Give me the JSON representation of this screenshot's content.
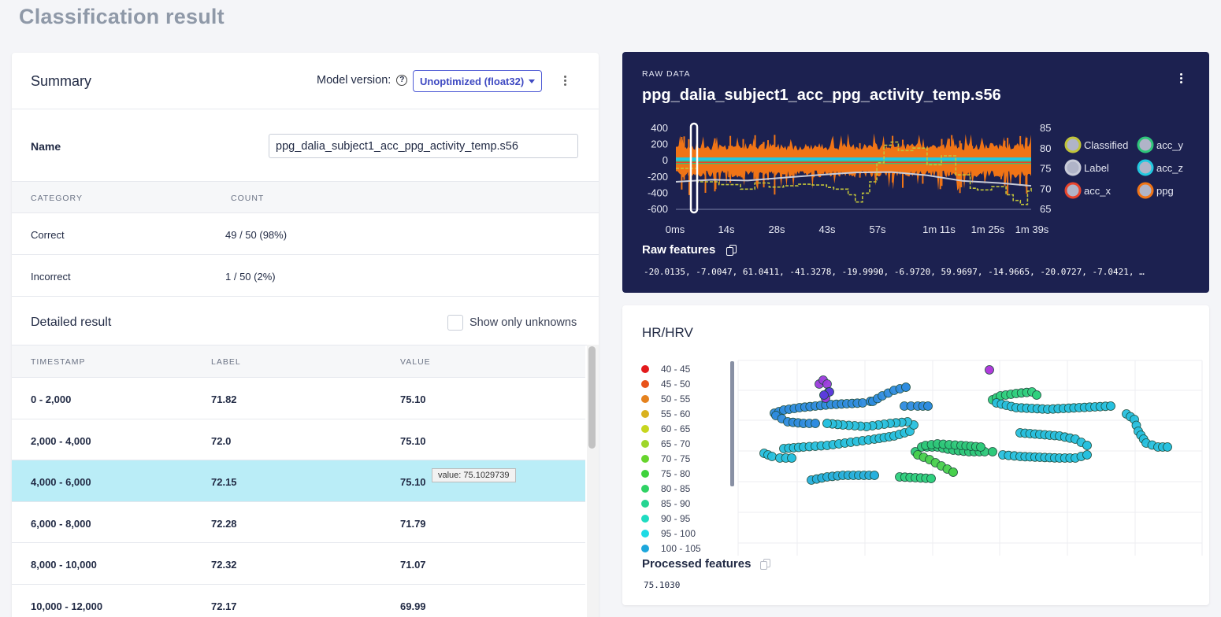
{
  "page_title": "Classification result",
  "summary": {
    "title": "Summary",
    "model_version_label": "Model version:",
    "model_version_value": "Unoptimized (float32)",
    "name_label": "Name",
    "name_value": "ppg_dalia_subject1_acc_ppg_activity_temp.s56",
    "columns": [
      "CATEGORY",
      "COUNT"
    ],
    "rows": [
      {
        "category": "Correct",
        "count": "49 / 50 (98%)"
      },
      {
        "category": "Incorrect",
        "count": "1 / 50 (2%)"
      }
    ]
  },
  "detailed": {
    "title": "Detailed result",
    "show_unknowns_label": "Show only unknowns",
    "show_unknowns_checked": false,
    "columns": [
      "TIMESTAMP",
      "LABEL",
      "VALUE"
    ],
    "rows": [
      {
        "timestamp": "0 - 2,000",
        "label": "71.82",
        "value": "75.10"
      },
      {
        "timestamp": "2,000 - 4,000",
        "label": "72.0",
        "value": "75.10"
      },
      {
        "timestamp": "4,000 - 6,000",
        "label": "72.15",
        "value": "75.10",
        "selected": true
      },
      {
        "timestamp": "6,000 - 8,000",
        "label": "72.28",
        "value": "71.79"
      },
      {
        "timestamp": "8,000 - 10,000",
        "label": "72.32",
        "value": "71.07"
      },
      {
        "timestamp": "10,000 - 12,000",
        "label": "72.17",
        "value": "69.99"
      }
    ],
    "tooltip": "value: 75.1029739"
  },
  "raw": {
    "eyebrow": "RAW DATA",
    "title": "ppg_dalia_subject1_acc_ppg_activity_temp.s56",
    "features_label": "Raw features",
    "features_value": "-20.0135, -7.0047, 61.0411, -41.3278, -19.9990, -6.9720, 59.9697, -14.9665, -20.0727, -7.0421, …"
  },
  "hr": {
    "title": "HR/HRV",
    "processed_label": "Processed features",
    "processed_value": "75.1030"
  },
  "chart_data": [
    {
      "type": "line",
      "title": "",
      "x_ticks": [
        "0ms",
        "14s",
        "28s",
        "43s",
        "57s",
        "1m 11s",
        "1m 25s",
        "1m 39s"
      ],
      "y_left_ticks": [
        400,
        200,
        0,
        -200,
        -400,
        -600
      ],
      "y_right_ticks": [
        85,
        80,
        75,
        70,
        65
      ],
      "ylim_left": [
        -600,
        400
      ],
      "ylim_right": [
        65,
        85
      ],
      "legend": [
        {
          "name": "Classified",
          "color": "#c1c43a"
        },
        {
          "name": "acc_y",
          "color": "#2fc57a"
        },
        {
          "name": "Label",
          "color": "#c8cbd8"
        },
        {
          "name": "acc_z",
          "color": "#22c8e0"
        },
        {
          "name": "acc_x",
          "color": "#e8432b"
        },
        {
          "name": "ppg",
          "color": "#f07416"
        }
      ],
      "series": [
        {
          "name": "Label",
          "x_s": [
            0,
            10,
            20,
            30,
            40,
            50,
            60,
            70,
            80,
            90,
            99
          ],
          "values": [
            71.8,
            72.3,
            72.1,
            72.8,
            73.5,
            74.1,
            74.2,
            73.4,
            72.0,
            71.5,
            70.8
          ]
        },
        {
          "name": "Classified",
          "x_s": [
            0,
            4,
            6,
            12,
            18,
            22,
            26,
            30,
            34,
            38,
            42,
            44,
            48,
            50,
            52,
            54,
            56,
            58,
            60,
            62,
            66,
            70,
            74,
            78,
            82,
            84,
            88,
            92,
            94,
            96,
            98,
            99
          ],
          "values": [
            75.1,
            75.1,
            71.8,
            71.1,
            70.0,
            71.5,
            70.5,
            70.8,
            71.2,
            71.0,
            70.4,
            70.0,
            68.6,
            66.8,
            69.0,
            71.8,
            76.5,
            80.8,
            81.6,
            79.5,
            80.1,
            76.0,
            78.2,
            73.5,
            70.2,
            69.8,
            70.6,
            68.6,
            67.2,
            66.2,
            69.5,
            70.5
          ]
        }
      ]
    },
    {
      "type": "scatter",
      "title": "",
      "legend": [
        "40 - 45",
        "45 - 50",
        "50 - 55",
        "55 - 60",
        "60 - 65",
        "65 - 70",
        "70 - 75",
        "75 - 80",
        "80 - 85",
        "85 - 90",
        "90 - 95",
        "95 - 100",
        "100 - 105"
      ],
      "legend_colors": [
        "#e31a1c",
        "#e8531a",
        "#e5821e",
        "#d9b21f",
        "#c7d61e",
        "#9ed62a",
        "#67d52d",
        "#3fd23c",
        "#2fd264",
        "#25d592",
        "#1fdcc1",
        "#1ddbe5",
        "#1da7dc"
      ]
    }
  ]
}
